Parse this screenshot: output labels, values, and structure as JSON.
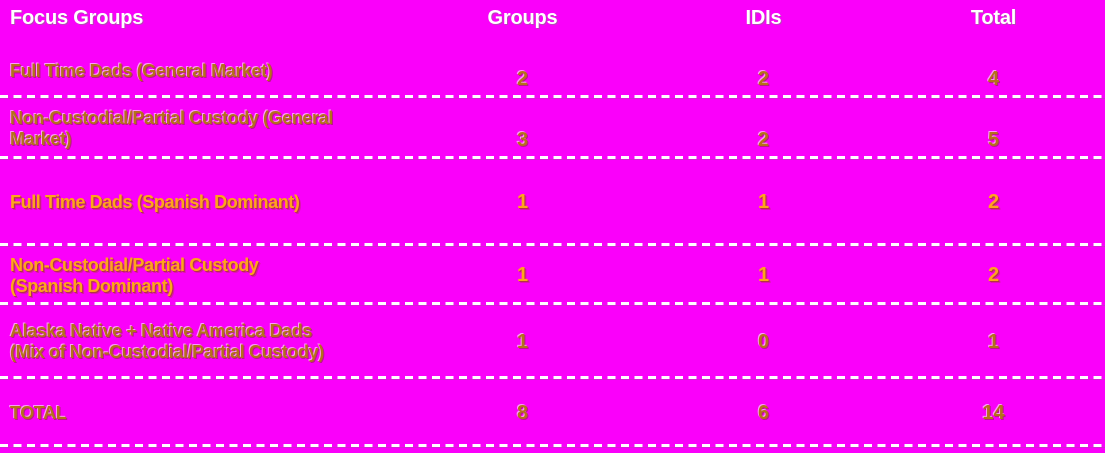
{
  "colors": {
    "background": "#fa00fa",
    "header_text": "#ffffff",
    "row_text_dark_amber": "#b5711a",
    "row_text_bright_orange": "#ffa41c",
    "divider": "#ffffff"
  },
  "table": {
    "headers": [
      "Focus Groups",
      "Groups",
      "IDIs",
      "Total"
    ],
    "rows": [
      {
        "label": "Full Time Dads (General Market)",
        "groups": "2",
        "idis": "2",
        "total": "4",
        "tone": "dark-amber"
      },
      {
        "label": "Non-Custodial/Partial Custody (General\nMarket)",
        "groups": "3",
        "idis": "2",
        "total": "5",
        "tone": "dark-amber"
      },
      {
        "label": "Full Time Dads (Spanish Dominant)",
        "groups": "1",
        "idis": "1",
        "total": "2",
        "tone": "bright-orange"
      },
      {
        "label": "Non-Custodial/Partial Custody\n(Spanish Dominant)",
        "groups": "1",
        "idis": "1",
        "total": "2",
        "tone": "bright-orange"
      },
      {
        "label": "Alaska Native + Native America Dads\n(Mix of Non-Custodial/Partial Custody)",
        "groups": "1",
        "idis": "0",
        "total": "1",
        "tone": "dark-amber"
      },
      {
        "label": "TOTAL",
        "groups": "8",
        "idis": "6",
        "total": "14",
        "tone": "dark-amber"
      }
    ]
  },
  "chart_data": {
    "type": "table",
    "title": "Focus Groups",
    "columns": [
      "Focus Groups",
      "Groups",
      "IDIs",
      "Total"
    ],
    "rows": [
      [
        "Full Time Dads (General Market)",
        2,
        2,
        4
      ],
      [
        "Non-Custodial/Partial Custody (General Market)",
        3,
        2,
        5
      ],
      [
        "Full Time Dads (Spanish Dominant)",
        1,
        1,
        2
      ],
      [
        "Non-Custodial/Partial Custody (Spanish Dominant)",
        1,
        1,
        2
      ],
      [
        "Alaska Native + Native America Dads (Mix of Non-Custodial/Partial Custody)",
        1,
        0,
        1
      ],
      [
        "TOTAL",
        8,
        6,
        14
      ]
    ]
  }
}
